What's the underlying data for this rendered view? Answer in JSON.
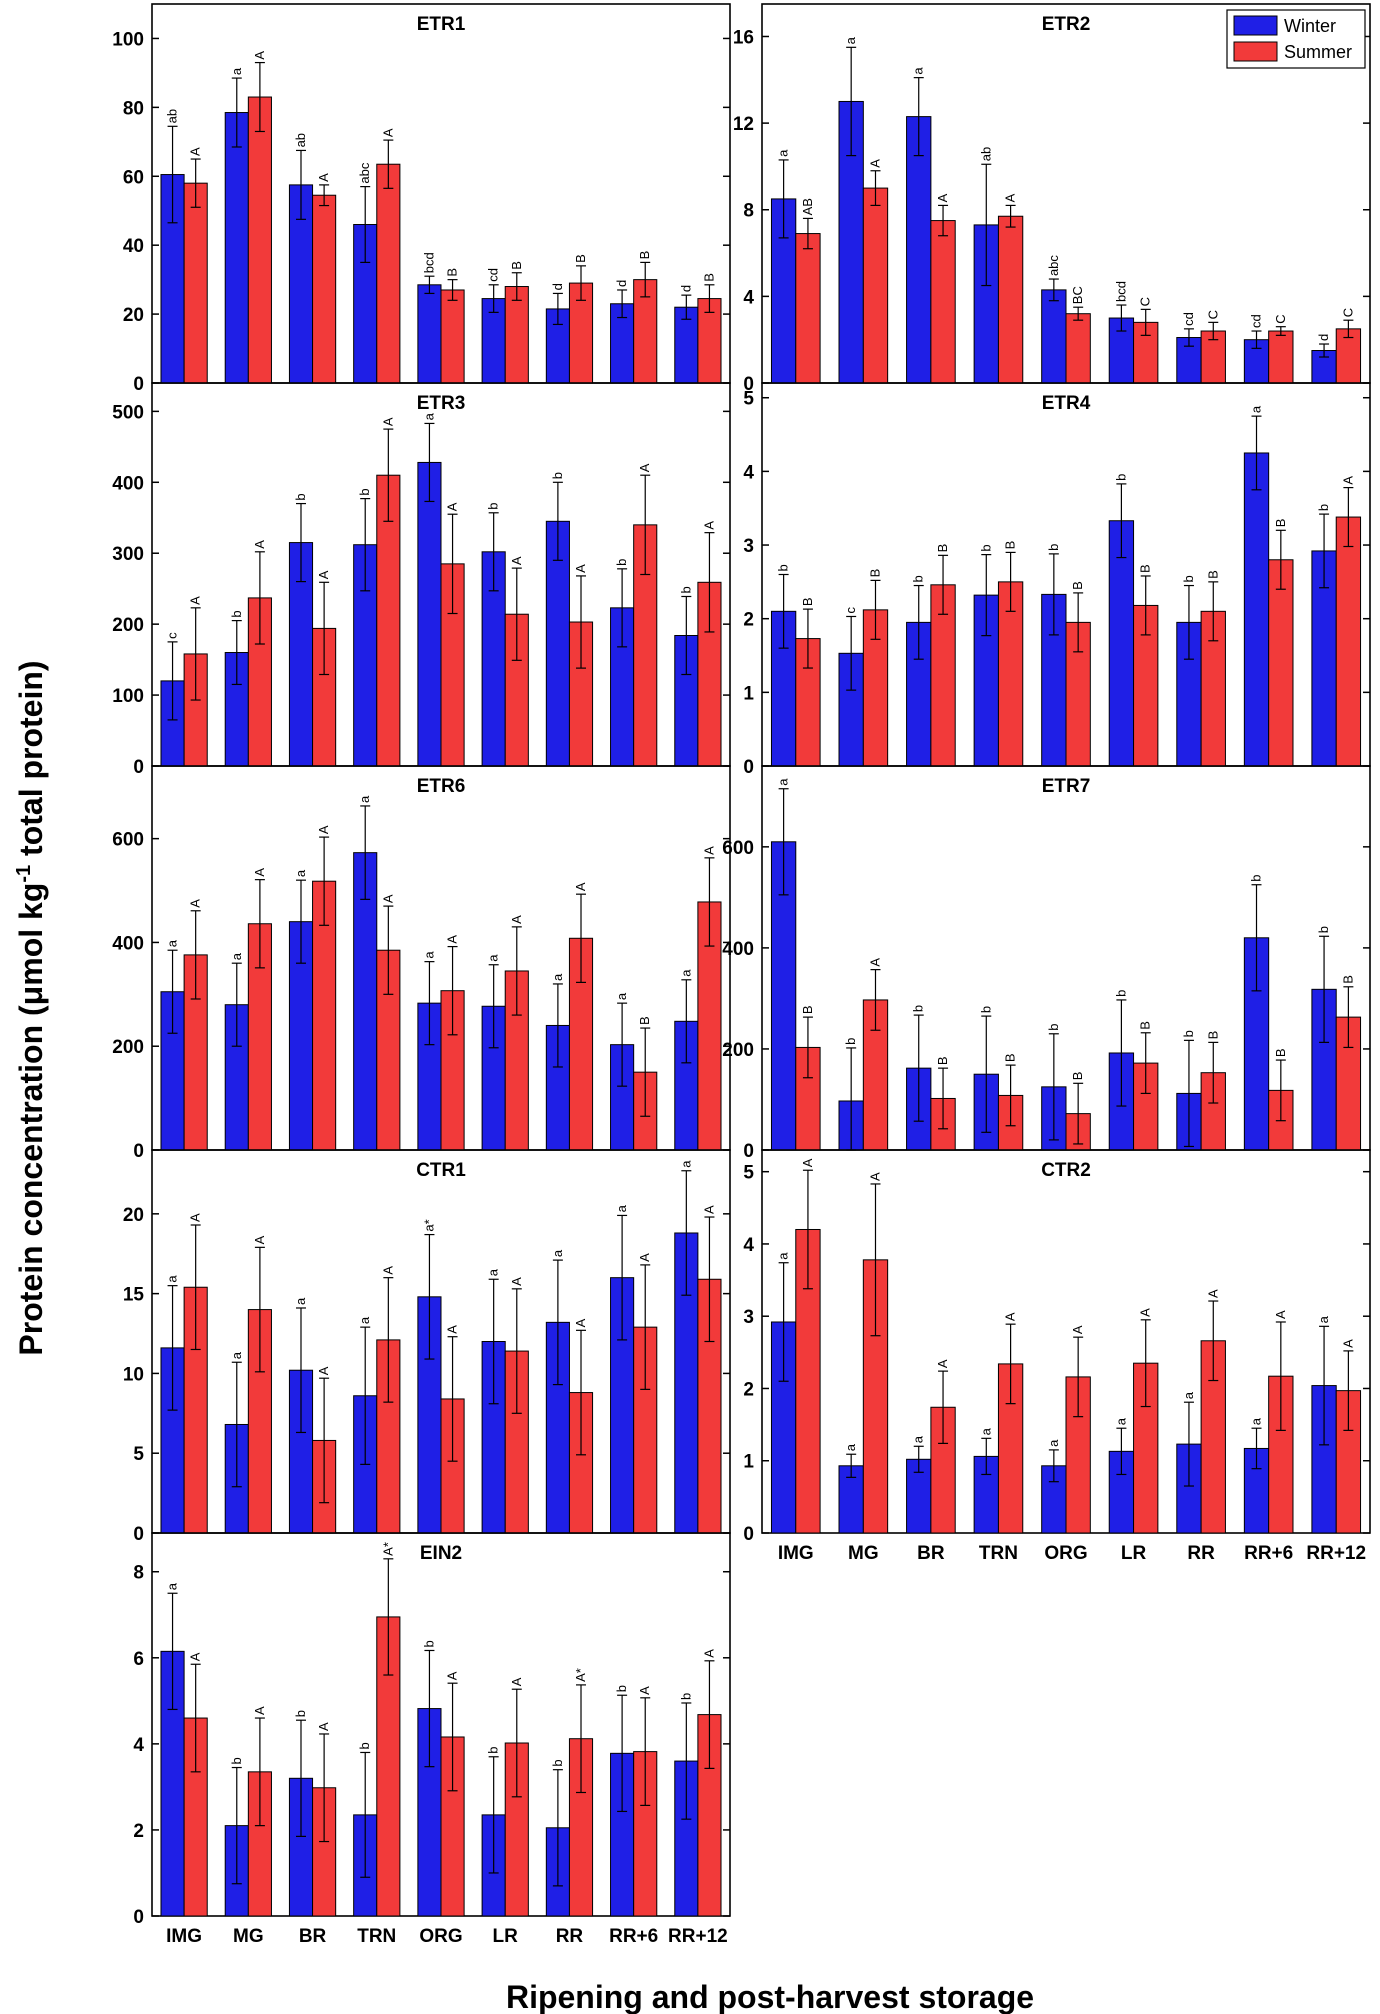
{
  "figure": {
    "ylabel_main": "Protein concentration (μmol kg",
    "ylabel_sup": "-1",
    "ylabel_tail": " total protein)",
    "xlabel": "Ripening and post-harvest storage"
  },
  "legend": {
    "winter": "Winter",
    "summer": "Summer",
    "location": "top-right of ETR2 panel"
  },
  "colors": {
    "winter": "#1f1fe6",
    "summer": "#f23a3a",
    "axis": "#000000"
  },
  "chart_data": [
    {
      "type": "bar",
      "title": "ETR1",
      "categories": [
        "IMG",
        "MG",
        "BR",
        "TRN",
        "ORG",
        "LR",
        "RR",
        "RR+6",
        "RR+12"
      ],
      "ylim": [
        0,
        110
      ],
      "yticks": [
        0,
        20,
        40,
        60,
        80,
        100
      ],
      "show_xticks": false,
      "series": [
        {
          "name": "Winter",
          "values": [
            60.5,
            78.5,
            57.5,
            46,
            28.5,
            24.5,
            21.5,
            23,
            22
          ],
          "errors": [
            14,
            10,
            10,
            11,
            2.5,
            4,
            4.5,
            4,
            3.5
          ],
          "letters": [
            "ab",
            "a",
            "ab",
            "abc",
            "bcd",
            "cd",
            "d",
            "d",
            "d"
          ]
        },
        {
          "name": "Summer",
          "values": [
            58,
            83,
            54.5,
            63.5,
            27,
            28,
            29,
            30,
            24.5
          ],
          "errors": [
            7,
            10,
            3,
            7,
            3,
            4,
            5,
            5,
            4
          ],
          "letters": [
            "A",
            "A",
            "A",
            "A",
            "B",
            "B",
            "B",
            "B",
            "B"
          ]
        }
      ]
    },
    {
      "type": "bar",
      "title": "ETR2",
      "categories": [
        "IMG",
        "MG",
        "BR",
        "TRN",
        "ORG",
        "LR",
        "RR",
        "RR+6",
        "RR+12"
      ],
      "ylim": [
        0,
        17.5
      ],
      "yticks": [
        0,
        4,
        8,
        12,
        16
      ],
      "show_xticks": false,
      "series": [
        {
          "name": "Winter",
          "values": [
            8.5,
            13,
            12.3,
            7.3,
            4.3,
            3,
            2.1,
            2,
            1.5
          ],
          "errors": [
            1.8,
            2.5,
            1.8,
            2.8,
            0.5,
            0.6,
            0.4,
            0.4,
            0.3
          ],
          "letters": [
            "a",
            "a",
            "a",
            "ab",
            "abc",
            "bcd",
            "cd",
            "cd",
            "d"
          ]
        },
        {
          "name": "Summer",
          "values": [
            6.9,
            9,
            7.5,
            7.7,
            3.2,
            2.8,
            2.4,
            2.4,
            2.5
          ],
          "errors": [
            0.7,
            0.8,
            0.7,
            0.5,
            0.3,
            0.6,
            0.4,
            0.2,
            0.4
          ],
          "letters": [
            "AB",
            "A",
            "A",
            "A",
            "BC",
            "C",
            "C",
            "C",
            "C"
          ]
        }
      ]
    },
    {
      "type": "bar",
      "title": "ETR3",
      "categories": [
        "IMG",
        "MG",
        "BR",
        "TRN",
        "ORG",
        "LR",
        "RR",
        "RR+6",
        "RR+12"
      ],
      "ylim": [
        0,
        540
      ],
      "yticks": [
        0,
        100,
        200,
        300,
        400,
        500
      ],
      "show_xticks": false,
      "series": [
        {
          "name": "Winter",
          "values": [
            120,
            160,
            315,
            312,
            428,
            302,
            345,
            223,
            184
          ],
          "errors": [
            55,
            45,
            55,
            65,
            55,
            55,
            55,
            55,
            55
          ],
          "letters": [
            "c",
            "b",
            "b",
            "b",
            "a",
            "b",
            "b",
            "b",
            "b"
          ]
        },
        {
          "name": "Summer",
          "values": [
            158,
            237,
            194,
            410,
            285,
            214,
            203,
            340,
            259
          ],
          "errors": [
            65,
            65,
            65,
            65,
            70,
            65,
            65,
            70,
            70
          ],
          "letters": [
            "A",
            "A",
            "A",
            "A",
            "A",
            "A",
            "A",
            "A",
            "A"
          ]
        }
      ]
    },
    {
      "type": "bar",
      "title": "ETR4",
      "categories": [
        "IMG",
        "MG",
        "BR",
        "TRN",
        "ORG",
        "LR",
        "RR",
        "RR+6",
        "RR+12"
      ],
      "ylim": [
        0,
        5.2
      ],
      "yticks": [
        0,
        1,
        2,
        3,
        4,
        5
      ],
      "show_xticks": false,
      "series": [
        {
          "name": "Winter",
          "values": [
            2.1,
            1.53,
            1.95,
            2.32,
            2.33,
            3.33,
            1.95,
            4.25,
            2.92
          ],
          "errors": [
            0.5,
            0.5,
            0.5,
            0.55,
            0.55,
            0.5,
            0.5,
            0.5,
            0.5
          ],
          "letters": [
            "b",
            "c",
            "b",
            "b",
            "b",
            "b",
            "b",
            "a",
            "b"
          ]
        },
        {
          "name": "Summer",
          "values": [
            1.73,
            2.12,
            2.46,
            2.5,
            1.95,
            2.18,
            2.1,
            2.8,
            3.38
          ],
          "errors": [
            0.4,
            0.4,
            0.4,
            0.4,
            0.4,
            0.4,
            0.4,
            0.4,
            0.4
          ],
          "letters": [
            "B",
            "B",
            "B",
            "B",
            "B",
            "B",
            "B",
            "B",
            "A"
          ]
        }
      ]
    },
    {
      "type": "bar",
      "title": "ETR6",
      "categories": [
        "IMG",
        "MG",
        "BR",
        "TRN",
        "ORG",
        "LR",
        "RR",
        "RR+6",
        "RR+12"
      ],
      "ylim": [
        0,
        740
      ],
      "yticks": [
        0,
        200,
        400,
        600
      ],
      "show_xticks": false,
      "series": [
        {
          "name": "Winter",
          "values": [
            305,
            280,
            440,
            573,
            283,
            277,
            240,
            203,
            248
          ],
          "errors": [
            80,
            80,
            80,
            90,
            80,
            80,
            80,
            80,
            80
          ],
          "letters": [
            "a",
            "a",
            "a",
            "a",
            "a",
            "a",
            "a",
            "a",
            "a"
          ]
        },
        {
          "name": "Summer",
          "values": [
            376,
            436,
            518,
            385,
            307,
            345,
            408,
            150,
            478
          ],
          "errors": [
            85,
            85,
            85,
            85,
            85,
            85,
            85,
            85,
            85
          ],
          "letters": [
            "A",
            "A",
            "A",
            "A",
            "A",
            "A",
            "A",
            "B",
            "A"
          ]
        }
      ]
    },
    {
      "type": "bar",
      "title": "ETR7",
      "categories": [
        "IMG",
        "MG",
        "BR",
        "TRN",
        "ORG",
        "LR",
        "RR",
        "RR+6",
        "RR+12"
      ],
      "ylim": [
        0,
        760
      ],
      "yticks": [
        0,
        200,
        400,
        600
      ],
      "show_xticks": false,
      "series": [
        {
          "name": "Winter",
          "values": [
            610,
            97,
            162,
            150,
            125,
            192,
            112,
            420,
            318
          ],
          "errors": [
            105,
            105,
            105,
            115,
            105,
            105,
            105,
            105,
            105
          ],
          "letters": [
            "a",
            "b",
            "b",
            "b",
            "b",
            "b",
            "b",
            "b",
            "b"
          ]
        },
        {
          "name": "Summer",
          "values": [
            203,
            297,
            102,
            108,
            72,
            172,
            153,
            118,
            263
          ],
          "errors": [
            60,
            60,
            60,
            60,
            60,
            60,
            60,
            60,
            60
          ],
          "letters": [
            "B",
            "A",
            "B",
            "B",
            "B",
            "B",
            "B",
            "B",
            "B"
          ]
        }
      ]
    },
    {
      "type": "bar",
      "title": "CTR1",
      "categories": [
        "IMG",
        "MG",
        "BR",
        "TRN",
        "ORG",
        "LR",
        "RR",
        "RR+6",
        "RR+12"
      ],
      "ylim": [
        0,
        24
      ],
      "yticks": [
        0,
        5,
        10,
        15,
        20
      ],
      "show_xticks": false,
      "series": [
        {
          "name": "Winter",
          "values": [
            11.6,
            6.8,
            10.2,
            8.6,
            14.8,
            12,
            13.2,
            16,
            18.8
          ],
          "errors": [
            3.9,
            3.9,
            3.9,
            4.3,
            3.9,
            3.9,
            3.9,
            3.9,
            3.9
          ],
          "letters": [
            "a",
            "a",
            "a",
            "a",
            "a*",
            "a",
            "a",
            "a",
            "a"
          ]
        },
        {
          "name": "Summer",
          "values": [
            15.4,
            14,
            5.8,
            12.1,
            8.4,
            11.4,
            8.8,
            12.9,
            15.9
          ],
          "errors": [
            3.9,
            3.9,
            3.9,
            3.9,
            3.9,
            3.9,
            3.9,
            3.9,
            3.9
          ],
          "letters": [
            "A",
            "A",
            "A",
            "A",
            "A",
            "A",
            "A",
            "A",
            "A"
          ]
        }
      ]
    },
    {
      "type": "bar",
      "title": "CTR2",
      "categories": [
        "IMG",
        "MG",
        "BR",
        "TRN",
        "ORG",
        "LR",
        "RR",
        "RR+6",
        "RR+12"
      ],
      "ylim": [
        0,
        5.3
      ],
      "yticks": [
        0,
        1,
        2,
        3,
        4,
        5
      ],
      "show_xticks": true,
      "series": [
        {
          "name": "Winter",
          "values": [
            2.92,
            0.93,
            1.02,
            1.06,
            0.93,
            1.13,
            1.23,
            1.17,
            2.04
          ],
          "errors": [
            0.82,
            0.16,
            0.18,
            0.25,
            0.22,
            0.32,
            0.58,
            0.28,
            0.82
          ],
          "letters": [
            "a",
            "a",
            "a",
            "a",
            "a",
            "a",
            "a",
            "a",
            "a"
          ]
        },
        {
          "name": "Summer",
          "values": [
            4.2,
            3.78,
            1.74,
            2.34,
            2.16,
            2.35,
            2.66,
            2.17,
            1.97
          ],
          "errors": [
            0.82,
            1.05,
            0.5,
            0.55,
            0.55,
            0.6,
            0.55,
            0.75,
            0.55
          ],
          "letters": [
            "A",
            "A",
            "A",
            "A",
            "A",
            "A",
            "A",
            "A",
            "A"
          ]
        }
      ]
    },
    {
      "type": "bar",
      "title": "EIN2",
      "categories": [
        "IMG",
        "MG",
        "BR",
        "TRN",
        "ORG",
        "LR",
        "RR",
        "RR+6",
        "RR+12"
      ],
      "ylim": [
        0,
        8.9
      ],
      "yticks": [
        0,
        2,
        4,
        6,
        8
      ],
      "show_xticks": true,
      "series": [
        {
          "name": "Winter",
          "values": [
            6.15,
            2.1,
            3.2,
            2.35,
            4.82,
            2.35,
            2.05,
            3.78,
            3.6
          ],
          "errors": [
            1.35,
            1.35,
            1.35,
            1.45,
            1.35,
            1.35,
            1.35,
            1.35,
            1.35
          ],
          "letters": [
            "a",
            "b",
            "b",
            "b",
            "b",
            "b",
            "b",
            "b",
            "b"
          ]
        },
        {
          "name": "Summer",
          "values": [
            4.6,
            3.35,
            2.98,
            6.95,
            4.16,
            4.02,
            4.12,
            3.82,
            4.68
          ],
          "errors": [
            1.25,
            1.25,
            1.25,
            1.35,
            1.25,
            1.25,
            1.25,
            1.25,
            1.25
          ],
          "letters": [
            "A",
            "A",
            "A",
            "A*",
            "A",
            "A",
            "A*",
            "A",
            "A"
          ]
        }
      ]
    }
  ]
}
